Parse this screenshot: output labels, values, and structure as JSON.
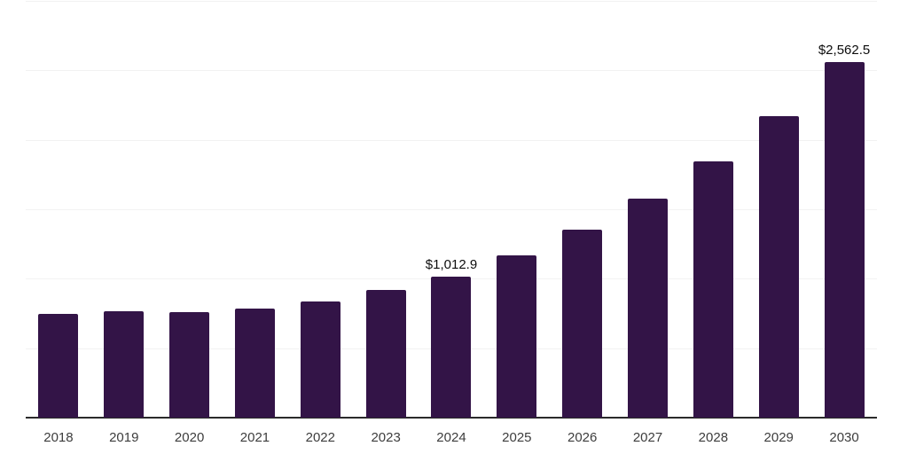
{
  "chart_data": {
    "type": "bar",
    "categories": [
      "2018",
      "2019",
      "2020",
      "2021",
      "2022",
      "2023",
      "2024",
      "2025",
      "2026",
      "2027",
      "2028",
      "2029",
      "2030"
    ],
    "values": [
      750,
      765,
      760,
      785,
      835,
      920,
      1012.9,
      1170,
      1355,
      1575,
      1845,
      2170,
      2562.5
    ],
    "annotations": {
      "2024": "$1,012.9",
      "2030": "$2,562.5"
    },
    "title": "",
    "xlabel": "",
    "ylabel": "",
    "ylim": [
      0,
      3000
    ],
    "y_divisions": 6,
    "grid": "horizontal",
    "legend": "none",
    "bar_color": "#331447",
    "gridline_color": "#f2f2f2",
    "axis_color": "#2b2b2b",
    "value_label_color": "#0d0d0d",
    "tick_label_color": "#3d3d3d",
    "background_color": "#ffffff"
  }
}
